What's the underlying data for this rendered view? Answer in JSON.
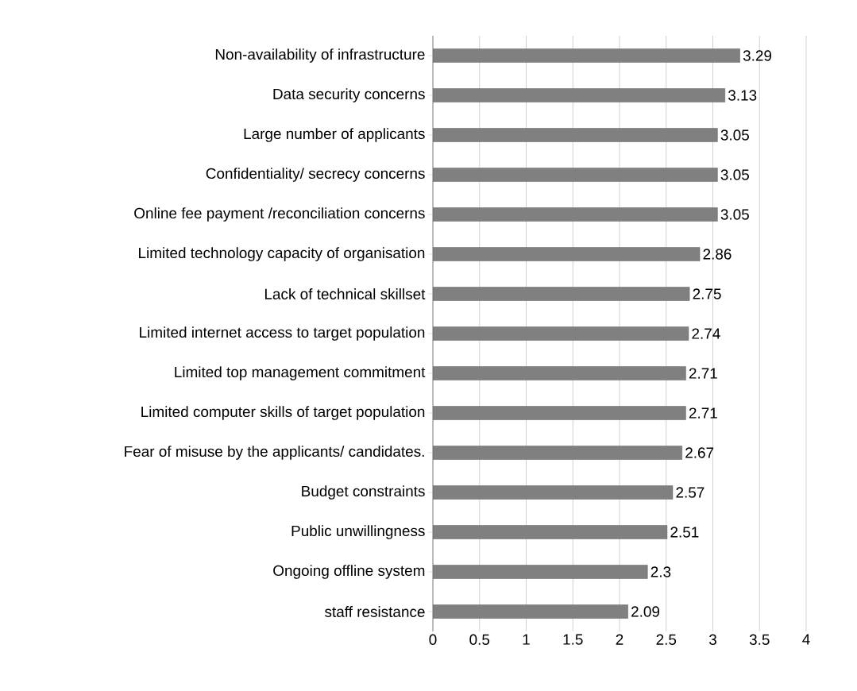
{
  "chart_data": {
    "type": "bar",
    "orientation": "horizontal",
    "categories": [
      "Non-availability of infrastructure",
      "Data security concerns",
      "Large number of applicants",
      "Confidentiality/ secrecy concerns",
      "Online fee payment /reconciliation concerns",
      "Limited technology capacity of organisation",
      "Lack of technical skillset",
      "Limited internet access to target population",
      "Limited top management commitment",
      "Limited computer skills of target population",
      "Fear of misuse by the applicants/ candidates.",
      "Budget constraints",
      "Public unwillingness",
      "Ongoing offline system",
      "staff resistance"
    ],
    "values": [
      3.29,
      3.13,
      3.05,
      3.05,
      3.05,
      2.86,
      2.75,
      2.74,
      2.71,
      2.71,
      2.67,
      2.57,
      2.51,
      2.3,
      2.09
    ],
    "color": "#808080",
    "data_labels": true,
    "grid": "x",
    "xlim": [
      0,
      4
    ],
    "xticks": [
      0,
      0.5,
      1,
      1.5,
      2,
      2.5,
      3,
      3.5,
      4
    ]
  }
}
